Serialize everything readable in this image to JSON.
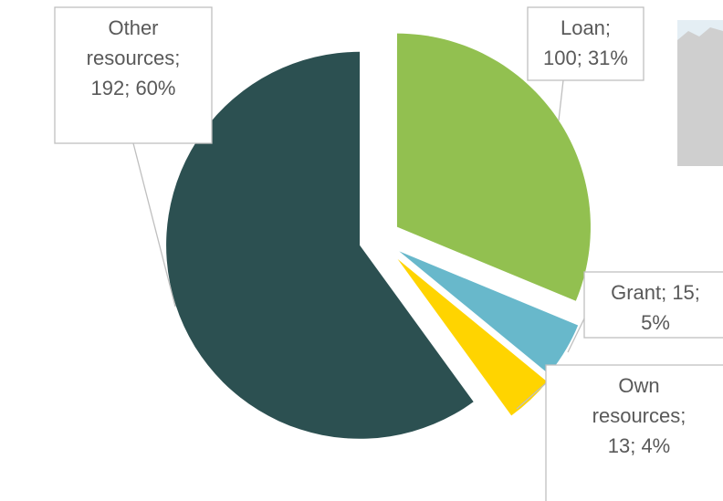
{
  "chart_data": {
    "type": "pie",
    "categories": [
      "Loan",
      "Grant",
      "Own resources",
      "Other resources"
    ],
    "values": [
      100,
      15,
      13,
      192
    ],
    "value_labels": [
      [
        "Loan;",
        "100; 31%"
      ],
      [
        "Grant; 15;",
        "5%"
      ],
      [
        "Own",
        "resources;",
        "13; 4%"
      ],
      [
        "Other",
        "resources;",
        "192; 60%"
      ]
    ],
    "colors": [
      "#92c050",
      "#68b8cb",
      "#ffd400",
      "#2c5051"
    ]
  }
}
